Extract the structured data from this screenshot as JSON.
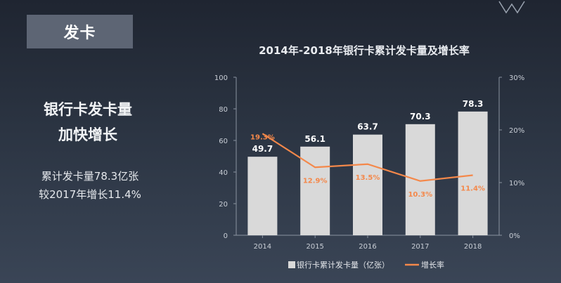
{
  "tag_label": "发卡",
  "headline": [
    "银行卡发卡量",
    "加快增长"
  ],
  "desc": [
    "累计发卡量78.3亿张",
    "较2017年增长11.4%"
  ],
  "chart_data": {
    "type": "bar",
    "title": "2014年-2018年银行卡累计发卡量及增长率",
    "categories": [
      "2014",
      "2015",
      "2016",
      "2017",
      "2018"
    ],
    "series": [
      {
        "name": "银行卡累计发卡量（亿张）",
        "type": "bar",
        "axis": "left",
        "values": [
          49.7,
          56.1,
          63.7,
          70.3,
          78.3
        ],
        "labels": [
          "49.7",
          "56.1",
          "63.7",
          "70.3",
          "78.3"
        ],
        "color": "#d9d9d9"
      },
      {
        "name": "增长率",
        "type": "line",
        "axis": "right",
        "values": [
          19.3,
          12.9,
          13.5,
          10.3,
          11.4
        ],
        "labels": [
          "19.3%",
          "12.9%",
          "13.5%",
          "10.3%",
          "11.4%"
        ],
        "color": "#f4884a"
      }
    ],
    "y_left": {
      "min": 0,
      "max": 100,
      "ticks": [
        "0",
        "20",
        "40",
        "60",
        "80",
        "100"
      ]
    },
    "y_right": {
      "min": 0,
      "max": 30,
      "ticks": [
        "0%",
        "10%",
        "20%",
        "30%"
      ]
    },
    "grid": false,
    "legend_position": "bottom"
  }
}
